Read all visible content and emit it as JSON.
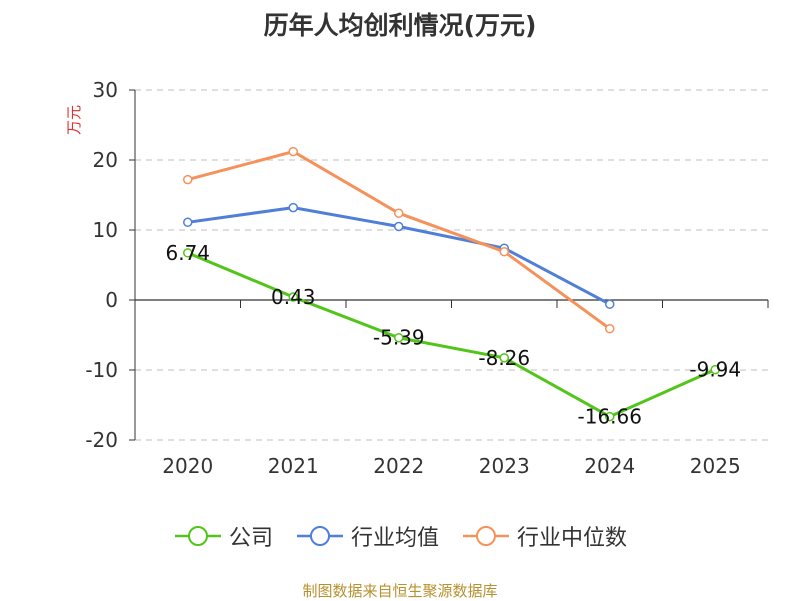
{
  "chart_data": {
    "type": "line",
    "title": "历年人均创利情况(万元)",
    "ylabel": "万元",
    "xlabel": "",
    "categories": [
      "2020",
      "2021",
      "2022",
      "2023",
      "2024",
      "2025"
    ],
    "ylim": [
      -20,
      30
    ],
    "yticks": [
      30,
      20,
      10,
      0,
      -10,
      -20
    ],
    "grid": true,
    "legend_position": "bottom",
    "series": [
      {
        "name": "公司",
        "color": "#52c41a",
        "values": [
          6.74,
          0.43,
          -5.39,
          -8.26,
          -16.66,
          -9.94
        ],
        "labels": [
          "6.74",
          "0.43",
          "-5.39",
          "-8.26",
          "-16.66",
          "-9.94"
        ]
      },
      {
        "name": "行业均值",
        "color": "#4f7fd8",
        "values": [
          11.1,
          13.2,
          10.5,
          7.4,
          -0.6,
          null
        ]
      },
      {
        "name": "行业中位数",
        "color": "#f5915a",
        "values": [
          17.2,
          21.2,
          12.4,
          6.9,
          -4.1,
          null
        ]
      }
    ]
  },
  "source_note": "制图数据来自恒生聚源数据库"
}
